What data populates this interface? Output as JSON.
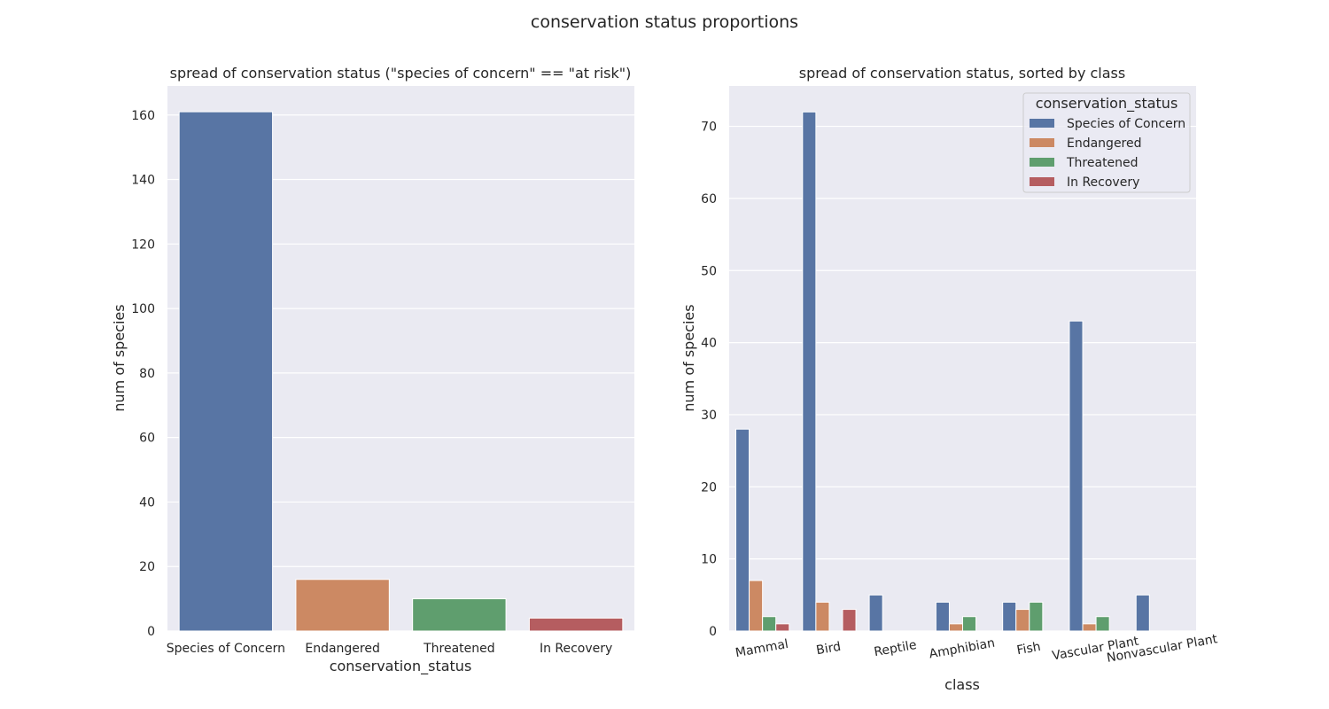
{
  "suptitle": "conservation status proportions",
  "colors": {
    "background": "#eaeaf2",
    "grid": "#ffffff",
    "Species of Concern": "#5875a4",
    "Endangered": "#cc8963",
    "Threatened": "#5f9e6e",
    "In Recovery": "#b55d60"
  },
  "chart_data": [
    {
      "type": "bar",
      "title": "spread of conservation status (\"species of concern\" == \"at risk\")",
      "xlabel": "conservation_status",
      "ylabel": "num of species",
      "categories": [
        "Species of Concern",
        "Endangered",
        "Threatened",
        "In Recovery"
      ],
      "values": [
        161,
        16,
        10,
        4
      ],
      "ylim": [
        0,
        169
      ],
      "yticks": [
        0,
        20,
        40,
        60,
        80,
        100,
        120,
        140,
        160
      ],
      "grid": true
    },
    {
      "type": "bar",
      "title": "spread of conservation status, sorted by class",
      "xlabel": "class",
      "ylabel": "num of species",
      "categories": [
        "Mammal",
        "Bird",
        "Reptile",
        "Amphibian",
        "Fish",
        "Vascular Plant",
        "Nonvascular Plant"
      ],
      "series": [
        {
          "name": "Species of Concern",
          "values": [
            28,
            72,
            5,
            4,
            4,
            43,
            5
          ]
        },
        {
          "name": "Endangered",
          "values": [
            7,
            4,
            null,
            1,
            3,
            1,
            null
          ]
        },
        {
          "name": "Threatened",
          "values": [
            2,
            null,
            null,
            2,
            4,
            2,
            null
          ]
        },
        {
          "name": "In Recovery",
          "values": [
            1,
            3,
            null,
            null,
            null,
            null,
            null
          ]
        }
      ],
      "ylim": [
        0,
        75.6
      ],
      "yticks": [
        0,
        10,
        20,
        30,
        40,
        50,
        60,
        70
      ],
      "legend": {
        "title": "conservation_status",
        "position": "top-right"
      },
      "grid": true
    }
  ]
}
